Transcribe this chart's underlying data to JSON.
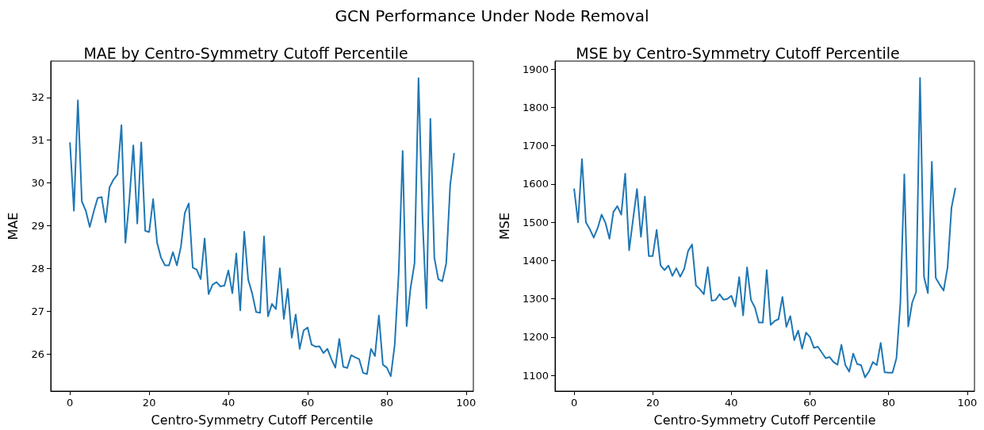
{
  "chart_data": [
    {
      "type": "line",
      "title": "MAE by Centro-Symmetry Cutoff Percentile",
      "xlabel": "Centro-Symmetry Cutoff Percentile",
      "ylabel": "MAE",
      "annotations": [
        "GCN Performance Under Node Removal"
      ],
      "x": [
        0,
        1,
        2,
        3,
        4,
        5,
        6,
        7,
        8,
        9,
        10,
        11,
        12,
        13,
        14,
        15,
        16,
        17,
        18,
        19,
        20,
        21,
        22,
        23,
        24,
        25,
        26,
        27,
        28,
        29,
        30,
        31,
        32,
        33,
        34,
        35,
        36,
        37,
        38,
        39,
        40,
        41,
        42,
        43,
        44,
        45,
        46,
        47,
        48,
        49,
        50,
        51,
        52,
        53,
        54,
        55,
        56,
        57,
        58,
        59,
        60,
        61,
        62,
        63,
        64,
        65,
        66,
        67,
        68,
        69,
        70,
        71,
        72,
        73,
        74,
        75,
        76,
        77,
        78,
        79,
        80,
        81,
        82,
        83,
        84,
        85,
        86,
        87,
        88,
        89,
        90,
        91,
        92,
        93,
        94,
        95,
        96,
        97
      ],
      "series": [
        {
          "color": "#1f77b4",
          "values": [
            30.95,
            29.35,
            31.93,
            29.57,
            29.35,
            28.97,
            29.33,
            29.65,
            29.67,
            29.08,
            29.9,
            30.08,
            30.2,
            31.35,
            28.6,
            29.6,
            30.88,
            29.05,
            30.95,
            28.88,
            28.85,
            29.62,
            28.6,
            28.25,
            28.07,
            28.07,
            28.38,
            28.07,
            28.5,
            29.3,
            29.52,
            28.02,
            27.97,
            27.75,
            28.7,
            27.4,
            27.62,
            27.68,
            27.58,
            27.6,
            27.95,
            27.42,
            28.35,
            27.02,
            28.86,
            27.74,
            27.42,
            26.98,
            26.96,
            28.75,
            26.88,
            27.17,
            27.05,
            28.0,
            26.82,
            27.52,
            26.38,
            26.92,
            26.12,
            26.55,
            26.62,
            26.22,
            26.17,
            26.18,
            26.02,
            26.12,
            25.88,
            25.68,
            26.35,
            25.7,
            25.67,
            25.97,
            25.92,
            25.88,
            25.56,
            25.53,
            26.12,
            25.95,
            26.9,
            25.75,
            25.68,
            25.48,
            26.22,
            27.9,
            30.75,
            26.65,
            27.55,
            28.12,
            32.45,
            29.2,
            27.07,
            31.5,
            28.25,
            27.75,
            27.7,
            28.12,
            29.95,
            30.7
          ]
        }
      ],
      "xlim": [
        -4.85,
        101.85
      ],
      "xticks": [
        0,
        20,
        40,
        60,
        80,
        100
      ],
      "ylim": [
        25.13,
        32.85
      ],
      "yticks": [
        26,
        27,
        28,
        29,
        30,
        31,
        32
      ],
      "grid": false,
      "marker": "none",
      "line_style": "solid"
    },
    {
      "type": "line",
      "title": "MSE by Centro-Symmetry Cutoff Percentile",
      "xlabel": "Centro-Symmetry Cutoff Percentile",
      "ylabel": "MSE",
      "x": [
        0,
        1,
        2,
        3,
        4,
        5,
        6,
        7,
        8,
        9,
        10,
        11,
        12,
        13,
        14,
        15,
        16,
        17,
        18,
        19,
        20,
        21,
        22,
        23,
        24,
        25,
        26,
        27,
        28,
        29,
        30,
        31,
        32,
        33,
        34,
        35,
        36,
        37,
        38,
        39,
        40,
        41,
        42,
        43,
        44,
        45,
        46,
        47,
        48,
        49,
        50,
        51,
        52,
        53,
        54,
        55,
        56,
        57,
        58,
        59,
        60,
        61,
        62,
        63,
        64,
        65,
        66,
        67,
        68,
        69,
        70,
        71,
        72,
        73,
        74,
        75,
        76,
        77,
        78,
        79,
        80,
        81,
        82,
        83,
        84,
        85,
        86,
        87,
        88,
        89,
        90,
        91,
        92,
        93,
        94,
        95,
        96,
        97
      ],
      "series": [
        {
          "color": "#1f77b4",
          "values": [
            1588,
            1500,
            1665,
            1500,
            1482,
            1460,
            1485,
            1520,
            1498,
            1457,
            1527,
            1542,
            1520,
            1627,
            1427,
            1508,
            1587,
            1462,
            1567,
            1412,
            1412,
            1480,
            1387,
            1375,
            1387,
            1360,
            1380,
            1358,
            1378,
            1425,
            1442,
            1335,
            1325,
            1312,
            1383,
            1295,
            1297,
            1312,
            1298,
            1300,
            1308,
            1280,
            1357,
            1257,
            1382,
            1297,
            1277,
            1238,
            1238,
            1375,
            1232,
            1242,
            1247,
            1305,
            1227,
            1255,
            1192,
            1217,
            1170,
            1212,
            1200,
            1172,
            1175,
            1160,
            1145,
            1148,
            1135,
            1128,
            1180,
            1127,
            1110,
            1157,
            1130,
            1127,
            1095,
            1110,
            1135,
            1127,
            1185,
            1108,
            1107,
            1107,
            1145,
            1290,
            1625,
            1228,
            1290,
            1318,
            1877,
            1358,
            1315,
            1658,
            1355,
            1337,
            1322,
            1382,
            1538,
            1590
          ]
        }
      ],
      "xlim": [
        -4.85,
        101.85
      ],
      "xticks": [
        0,
        20,
        40,
        60,
        80,
        100
      ],
      "ylim": [
        1059,
        1921
      ],
      "yticks": [
        1100,
        1200,
        1300,
        1400,
        1500,
        1600,
        1700,
        1800,
        1900
      ],
      "grid": false,
      "marker": "none",
      "line_style": "solid"
    }
  ]
}
